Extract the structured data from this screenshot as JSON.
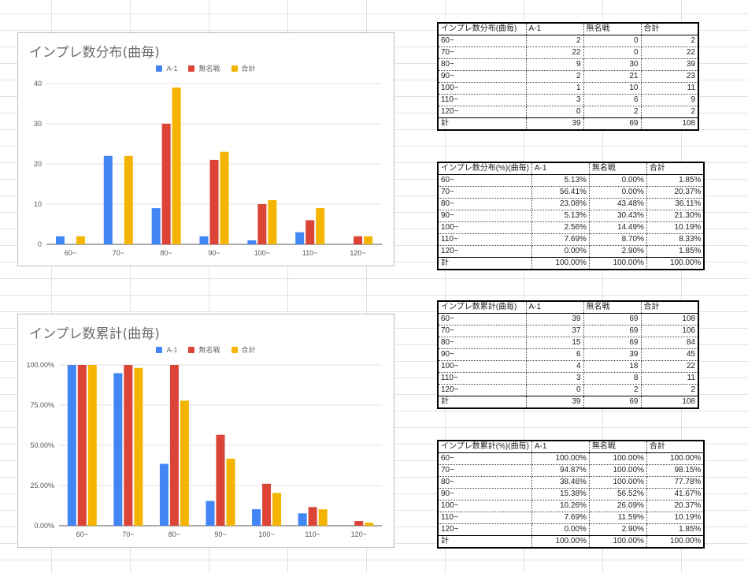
{
  "colors": {
    "a1": "#4285f4",
    "mumeisen": "#db4437",
    "total": "#f4b400"
  },
  "chart_data": [
    {
      "type": "bar",
      "title": "インプレ数分布(曲毎)",
      "categories": [
        "60~",
        "70~",
        "80~",
        "90~",
        "100~",
        "110~",
        "120~"
      ],
      "series": [
        {
          "name": "A-1",
          "values": [
            2,
            22,
            9,
            2,
            1,
            3,
            0
          ]
        },
        {
          "name": "無名戦",
          "values": [
            0,
            0,
            30,
            21,
            10,
            6,
            2
          ]
        },
        {
          "name": "合計",
          "values": [
            2,
            22,
            39,
            23,
            11,
            9,
            2
          ]
        }
      ],
      "yticks": [
        "0",
        "10",
        "20",
        "30",
        "40"
      ],
      "ylim": [
        0,
        40
      ],
      "grid": true,
      "legend": "top"
    },
    {
      "type": "bar",
      "title": "インプレ数累計(曲毎)",
      "categories": [
        "60~",
        "70~",
        "80~",
        "90~",
        "100~",
        "110~",
        "120~"
      ],
      "series": [
        {
          "name": "A-1",
          "values": [
            100,
            94.87,
            38.46,
            15.38,
            10.26,
            7.69,
            0
          ]
        },
        {
          "name": "無名戦",
          "values": [
            100,
            100,
            100,
            56.52,
            26.09,
            11.59,
            2.9
          ]
        },
        {
          "name": "合計",
          "values": [
            100,
            98.15,
            77.78,
            41.67,
            20.37,
            10.19,
            1.85
          ]
        }
      ],
      "yticks": [
        "0.00%",
        "25.00%",
        "50.00%",
        "75.00%",
        "100.00%"
      ],
      "ylim": [
        0,
        100
      ],
      "grid": true,
      "legend": "top"
    }
  ],
  "tables": [
    {
      "header": [
        "インプレ数分布(曲毎)",
        "A-1",
        "無名戦",
        "合計"
      ],
      "rows": [
        [
          "60~",
          "2",
          "0",
          "2"
        ],
        [
          "70~",
          "22",
          "0",
          "22"
        ],
        [
          "80~",
          "9",
          "30",
          "39"
        ],
        [
          "90~",
          "2",
          "21",
          "23"
        ],
        [
          "100~",
          "1",
          "10",
          "11"
        ],
        [
          "110~",
          "3",
          "6",
          "9"
        ],
        [
          "120~",
          "0",
          "2",
          "2"
        ]
      ],
      "total": [
        "計",
        "39",
        "69",
        "108"
      ]
    },
    {
      "header": [
        "インプレ数分布(%)(曲毎)",
        "A-1",
        "無名戦",
        "合計"
      ],
      "rows": [
        [
          "60~",
          "5.13%",
          "0.00%",
          "1.85%"
        ],
        [
          "70~",
          "56.41%",
          "0.00%",
          "20.37%"
        ],
        [
          "80~",
          "23.08%",
          "43.48%",
          "36.11%"
        ],
        [
          "90~",
          "5.13%",
          "30.43%",
          "21.30%"
        ],
        [
          "100~",
          "2.56%",
          "14.49%",
          "10.19%"
        ],
        [
          "110~",
          "7.69%",
          "8.70%",
          "8.33%"
        ],
        [
          "120~",
          "0.00%",
          "2.90%",
          "1.85%"
        ]
      ],
      "total": [
        "計",
        "100.00%",
        "100.00%",
        "100.00%"
      ]
    },
    {
      "header": [
        "インプレ数累計(曲毎)",
        "A-1",
        "無名戦",
        "合計"
      ],
      "rows": [
        [
          "60~",
          "39",
          "69",
          "108"
        ],
        [
          "70~",
          "37",
          "69",
          "106"
        ],
        [
          "80~",
          "15",
          "69",
          "84"
        ],
        [
          "90~",
          "6",
          "39",
          "45"
        ],
        [
          "100~",
          "4",
          "18",
          "22"
        ],
        [
          "110~",
          "3",
          "8",
          "11"
        ],
        [
          "120~",
          "0",
          "2",
          "2"
        ]
      ],
      "total": [
        "計",
        "39",
        "69",
        "108"
      ]
    },
    {
      "header": [
        "インプレ数累計(%)(曲毎)",
        "A-1",
        "無名戦",
        "合計"
      ],
      "rows": [
        [
          "60~",
          "100.00%",
          "100.00%",
          "100.00%"
        ],
        [
          "70~",
          "94.87%",
          "100.00%",
          "98.15%"
        ],
        [
          "80~",
          "38.46%",
          "100.00%",
          "77.78%"
        ],
        [
          "90~",
          "15.38%",
          "56.52%",
          "41.67%"
        ],
        [
          "100~",
          "10.26%",
          "26.09%",
          "20.37%"
        ],
        [
          "110~",
          "7.69%",
          "11.59%",
          "10.19%"
        ],
        [
          "120~",
          "0.00%",
          "2.90%",
          "1.85%"
        ]
      ],
      "total": [
        "計",
        "100.00%",
        "100.00%",
        "100.00%"
      ]
    }
  ]
}
